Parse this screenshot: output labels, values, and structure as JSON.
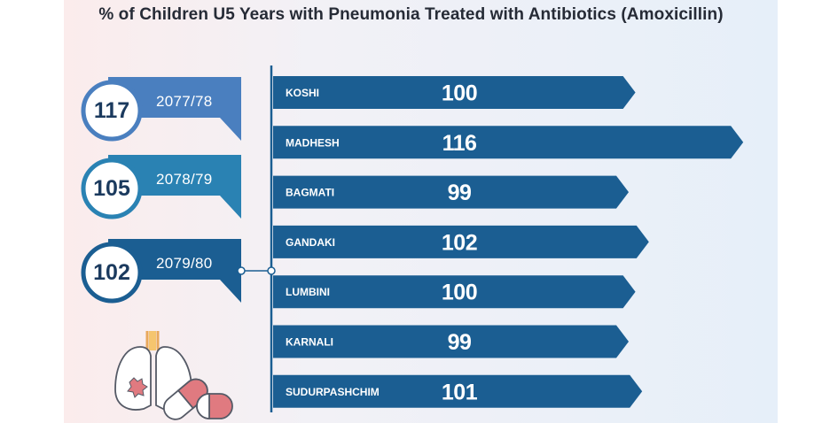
{
  "chart_data": {
    "type": "bar",
    "title": "% of Children U5 Years with Pneumonia Treated with Antibiotics (Amoxicillin)",
    "orientation": "horizontal",
    "categories": [
      "KOSHI",
      "MADHESH",
      "BAGMATI",
      "GANDAKI",
      "LUMBINI",
      "KARNALI",
      "SUDURPASHCHIM"
    ],
    "values": [
      100,
      116,
      99,
      102,
      100,
      99,
      101
    ],
    "bar_color": "#1b5e92"
  },
  "national_trend": [
    {
      "year": "2077/78",
      "value": "117",
      "color": "#4a7fbf"
    },
    {
      "year": "2078/79",
      "value": "105",
      "color": "#2a82b3"
    },
    {
      "year": "2079/80",
      "value": "102",
      "color": "#1b5e92"
    }
  ],
  "colors": {
    "bar": "#1b5e92",
    "circle_text": "#1b3a5e",
    "title": "#262b36"
  }
}
